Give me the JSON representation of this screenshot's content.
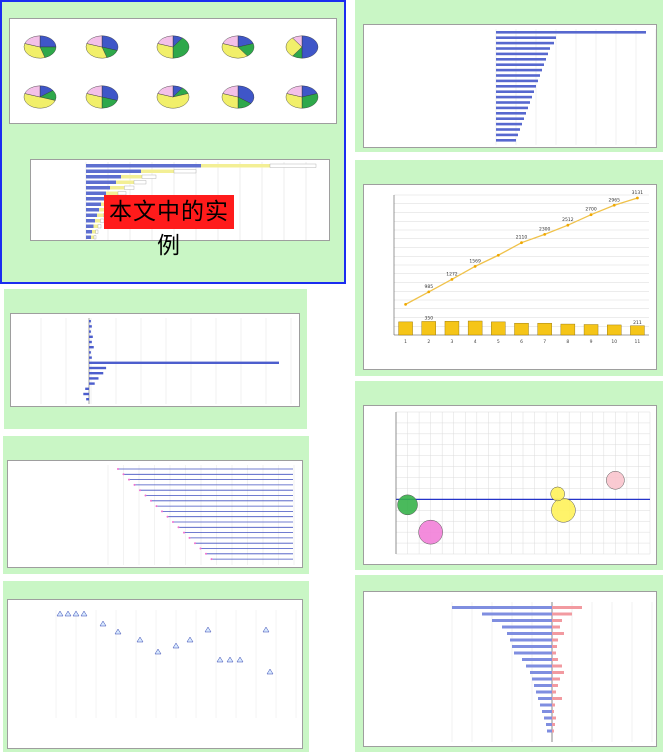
{
  "overlay_text": "本文中的实例",
  "chart_data": [
    {
      "type": "pie",
      "title": "",
      "count": 10
    },
    {
      "type": "bar",
      "title": ""
    },
    {
      "type": "bar",
      "title": ""
    },
    {
      "type": "line",
      "title": ""
    },
    {
      "type": "scatter",
      "title": ""
    },
    {
      "type": "bar",
      "title": ""
    },
    {
      "type": "bar",
      "title": ""
    },
    {
      "type": "line",
      "title": "",
      "x": [
        "1",
        "2",
        "3",
        "4",
        "5",
        "6",
        "7",
        "8",
        "9",
        "10",
        "11"
      ],
      "series": [
        {
          "values": [
            700,
            985,
            1272,
            1569,
            1823,
            2110,
            2300,
            2510,
            2750,
            2965,
            3131
          ]
        }
      ],
      "bars": [
        300,
        310,
        315,
        320,
        300,
        270,
        270,
        250,
        240,
        230,
        211
      ],
      "ylim": [
        0,
        3200
      ],
      "point_labels": [
        "",
        "985",
        "1272",
        "1569",
        "",
        "2110",
        "2300",
        "2512",
        "2700",
        "2965",
        "3131"
      ],
      "bar_labels": [
        "",
        "350",
        "",
        "",
        "",
        "",
        "",
        "",
        "",
        "",
        "211"
      ]
    },
    {
      "type": "scatter",
      "title": "",
      "xlim": [
        0,
        22
      ],
      "ylim": [
        -10,
        16
      ],
      "points": [
        {
          "x": 1,
          "y": -1,
          "size": 10,
          "color": "#36b24a"
        },
        {
          "x": 3,
          "y": -6,
          "size": 12,
          "color": "#f280d8"
        },
        {
          "x": 14.5,
          "y": -2,
          "size": 12,
          "color": "#fff25a"
        },
        {
          "x": 14,
          "y": 1,
          "size": 7,
          "color": "#fff25a"
        },
        {
          "x": 19,
          "y": 3.5,
          "size": 9,
          "color": "#f9c4cd"
        }
      ]
    },
    {
      "type": "bar",
      "title": ""
    }
  ]
}
